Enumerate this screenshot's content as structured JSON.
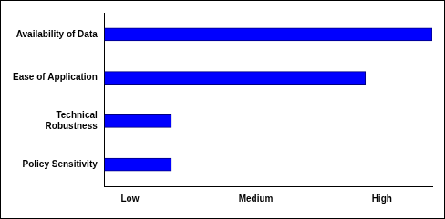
{
  "chart_data": {
    "type": "bar",
    "orientation": "horizontal",
    "categories": [
      "Availability of Data",
      "Ease of Application",
      "Technical Robustness",
      "Policy Sensitivity"
    ],
    "values": [
      3.4,
      2.87,
      1.33,
      1.33
    ],
    "color": "#0000ff",
    "xlim": [
      0.8,
      3.4
    ],
    "xticks": [
      {
        "value": 1,
        "label": "Low"
      },
      {
        "value": 2,
        "label": "Medium"
      },
      {
        "value": 3,
        "label": "High"
      }
    ],
    "grid": false
  }
}
